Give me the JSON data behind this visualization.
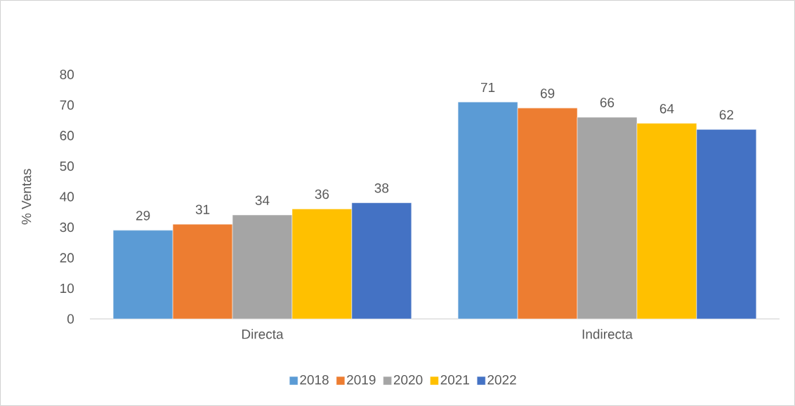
{
  "chart_data": {
    "type": "bar",
    "ylabel": "% Ventas",
    "categories": [
      "Directa",
      "Indirecta"
    ],
    "series": [
      {
        "name": "2018",
        "color": "#5b9bd5",
        "values": [
          29,
          71
        ]
      },
      {
        "name": "2019",
        "color": "#ed7d31",
        "values": [
          31,
          69
        ]
      },
      {
        "name": "2020",
        "color": "#a5a5a5",
        "values": [
          34,
          66
        ]
      },
      {
        "name": "2021",
        "color": "#ffc000",
        "values": [
          36,
          64
        ]
      },
      {
        "name": "2022",
        "color": "#4472c4",
        "values": [
          38,
          62
        ]
      }
    ],
    "ylim": [
      0,
      80
    ],
    "yticks": [
      0,
      10,
      20,
      30,
      40,
      50,
      60,
      70,
      80
    ],
    "legend": "bottom",
    "data_labels": true
  }
}
